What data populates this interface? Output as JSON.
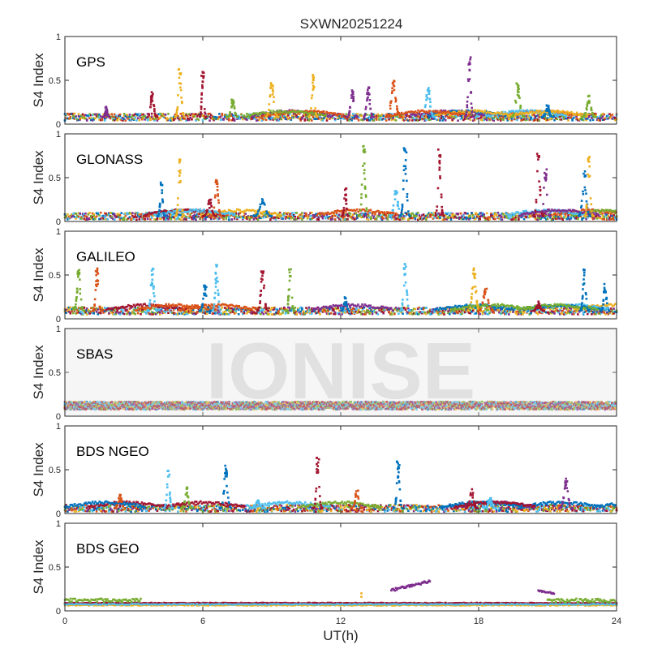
{
  "chart_data": {
    "type": "scatter",
    "title": "SXWN20251224",
    "xlabel": "UT(h)",
    "ylabel": "S4 Index",
    "xlim": [
      0,
      24
    ],
    "ylim": [
      0,
      1
    ],
    "x_ticks": [
      "0",
      "6",
      "12",
      "18",
      "24"
    ],
    "y_ticks": [
      "0",
      "0.5",
      "1"
    ],
    "watermark": "IONISE",
    "series_colors": [
      "#0072BD",
      "#D95319",
      "#EDB120",
      "#7E2F8E",
      "#77AC30",
      "#4DBEEE",
      "#A2142F"
    ],
    "panels": [
      {
        "name": "GPS",
        "baseline": 0.08,
        "spikes": [
          [
            1.8,
            0.2,
            0.3,
            3
          ],
          [
            3.8,
            0.38,
            0.45,
            6
          ],
          [
            5.0,
            0.65,
            0.45,
            2
          ],
          [
            6.0,
            0.63,
            0.3,
            6
          ],
          [
            7.3,
            0.3,
            0.5,
            4
          ],
          [
            9.0,
            0.48,
            0.6,
            2
          ],
          [
            10.8,
            0.6,
            0.4,
            2
          ],
          [
            12.5,
            0.4,
            0.5,
            3
          ],
          [
            13.2,
            0.42,
            0.5,
            3
          ],
          [
            14.3,
            0.5,
            0.7,
            1
          ],
          [
            15.8,
            0.45,
            0.6,
            5
          ],
          [
            17.6,
            0.78,
            0.4,
            3
          ],
          [
            19.7,
            0.48,
            0.6,
            4
          ],
          [
            21.0,
            0.22,
            0.5,
            0
          ],
          [
            22.8,
            0.33,
            0.6,
            4
          ]
        ]
      },
      {
        "name": "GLONASS",
        "baseline": 0.06,
        "spikes": [
          [
            4.2,
            0.45,
            0.35,
            0
          ],
          [
            5.0,
            0.72,
            0.4,
            2
          ],
          [
            6.6,
            0.52,
            0.45,
            1
          ],
          [
            6.3,
            0.25,
            0.6,
            6
          ],
          [
            8.6,
            0.3,
            0.8,
            0
          ],
          [
            12.2,
            0.38,
            0.3,
            6
          ],
          [
            13.0,
            0.87,
            0.45,
            4
          ],
          [
            14.4,
            0.35,
            0.6,
            5
          ],
          [
            14.8,
            0.85,
            0.45,
            0
          ],
          [
            16.3,
            0.83,
            0.4,
            6
          ],
          [
            20.6,
            0.78,
            0.45,
            6
          ],
          [
            20.9,
            0.6,
            0.45,
            3
          ],
          [
            22.6,
            0.58,
            0.55,
            0
          ],
          [
            22.8,
            0.78,
            0.4,
            2
          ]
        ]
      },
      {
        "name": "GALILEO",
        "baseline": 0.09,
        "spikes": [
          [
            0.6,
            0.58,
            0.5,
            4
          ],
          [
            1.4,
            0.58,
            0.4,
            1
          ],
          [
            3.8,
            0.6,
            0.45,
            5
          ],
          [
            6.1,
            0.4,
            0.5,
            0
          ],
          [
            6.6,
            0.62,
            0.4,
            5
          ],
          [
            8.6,
            0.58,
            0.5,
            6
          ],
          [
            9.8,
            0.57,
            0.4,
            4
          ],
          [
            12.2,
            0.25,
            0.4,
            0
          ],
          [
            14.8,
            0.65,
            0.45,
            5
          ],
          [
            17.8,
            0.6,
            0.55,
            2
          ],
          [
            18.3,
            0.35,
            0.7,
            1
          ],
          [
            20.6,
            0.2,
            0.5,
            6
          ],
          [
            22.6,
            0.58,
            0.4,
            0
          ],
          [
            23.5,
            0.4,
            0.4,
            0
          ]
        ]
      },
      {
        "name": "SBAS",
        "baseline": 0.12,
        "spikes": []
      },
      {
        "name": "BDS NGEO",
        "baseline": 0.06,
        "spikes": [
          [
            2.4,
            0.22,
            0.5,
            1
          ],
          [
            4.5,
            0.5,
            0.4,
            5
          ],
          [
            5.3,
            0.3,
            0.5,
            4
          ],
          [
            7.0,
            0.55,
            0.5,
            0
          ],
          [
            8.4,
            0.15,
            0.6,
            5
          ],
          [
            11.0,
            0.65,
            0.4,
            6
          ],
          [
            12.7,
            0.27,
            0.5,
            1
          ],
          [
            14.5,
            0.6,
            0.4,
            0
          ],
          [
            17.7,
            0.28,
            0.5,
            6
          ],
          [
            18.5,
            0.2,
            0.5,
            5
          ],
          [
            21.8,
            0.4,
            0.6,
            3
          ]
        ]
      },
      {
        "name": "BDS GEO",
        "baseline": 0.08,
        "spikes": []
      }
    ]
  }
}
